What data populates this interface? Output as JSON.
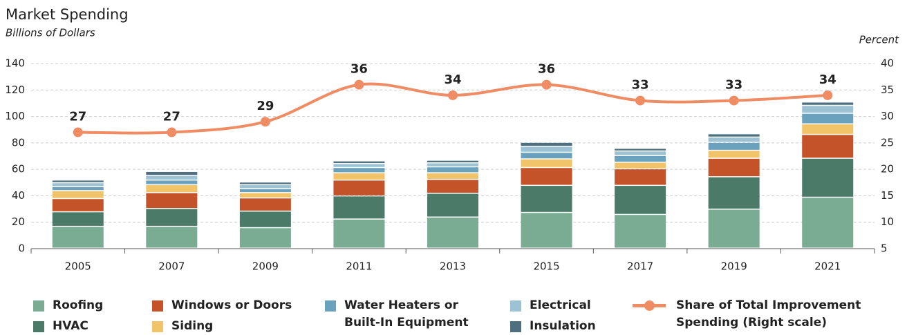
{
  "chart_data": {
    "type": "bar",
    "stacked": true,
    "title": "Market Spending",
    "subtitle": "Billions of Dollars",
    "y2_label": "Percent",
    "categories": [
      "2005",
      "2007",
      "2009",
      "2011",
      "2013",
      "2015",
      "2017",
      "2019",
      "2021"
    ],
    "series": [
      {
        "name": "Roofing",
        "color": "#7aab93",
        "values": [
          16.5,
          16.5,
          15.5,
          22,
          23.5,
          27,
          25.5,
          29.5,
          38.5
        ]
      },
      {
        "name": "HVAC",
        "color": "#4c7a68",
        "values": [
          11,
          13.5,
          12.5,
          17.5,
          18,
          20.5,
          22,
          24.5,
          29.5
        ]
      },
      {
        "name": "Windows or Doors",
        "color": "#c4532a",
        "values": [
          10,
          12,
          10,
          12,
          10.5,
          13.5,
          12.5,
          14,
          18
        ]
      },
      {
        "name": "Siding",
        "color": "#f2c46a",
        "values": [
          6,
          6,
          4,
          5.5,
          5,
          6.5,
          5,
          6,
          8
        ]
      },
      {
        "name": "Water Heaters or Built-In Equipment",
        "color": "#6aa1bd",
        "values": [
          3,
          3.5,
          3,
          4,
          4.5,
          5,
          5,
          6,
          8
        ]
      },
      {
        "name": "Electrical",
        "color": "#9cc2d4",
        "values": [
          3,
          3.5,
          3,
          3,
          3,
          4.5,
          3.5,
          4,
          6
        ]
      },
      {
        "name": "Insulation",
        "color": "#4e6f80",
        "values": [
          2,
          3,
          2,
          2,
          2,
          3,
          2,
          2.5,
          2.5
        ]
      },
      {
        "name": "Share of Total Improvement Spending (Right scale)",
        "color": "#ef8c64",
        "type": "line",
        "axis": "y2",
        "values": [
          27,
          27,
          29,
          36,
          34,
          36,
          33,
          33,
          34
        ]
      }
    ],
    "ylim": [
      0,
      140
    ],
    "yticks": [
      0,
      20,
      40,
      60,
      80,
      100,
      120,
      140
    ],
    "y2lim": [
      5,
      40
    ],
    "y2ticks": [
      5,
      10,
      15,
      20,
      25,
      30,
      35,
      40
    ],
    "grid": true,
    "legend": "bottom"
  }
}
